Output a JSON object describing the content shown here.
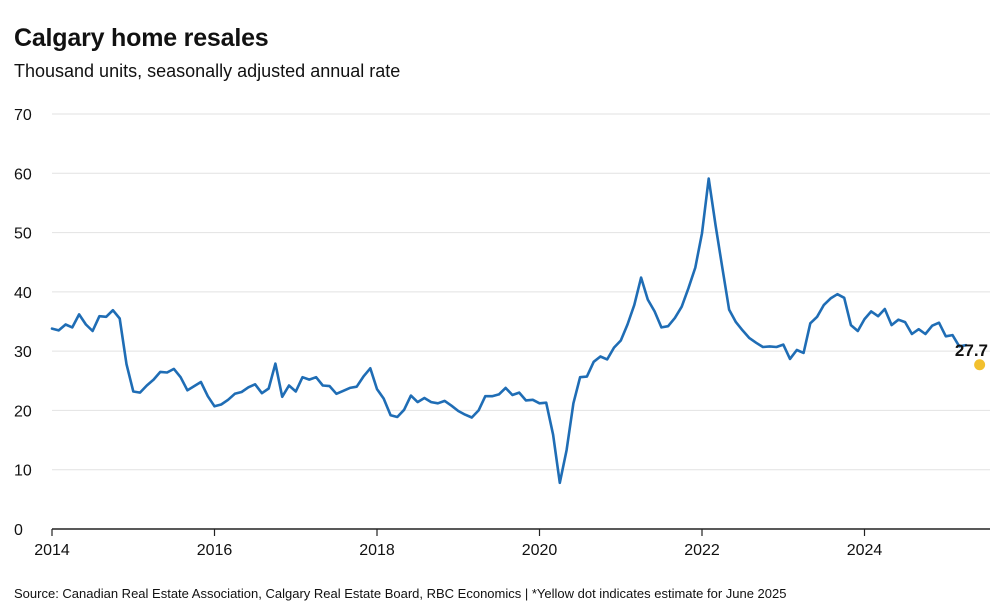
{
  "chart_data": {
    "type": "line",
    "title": "Calgary home resales",
    "subtitle": "Thousand units, seasonally adjusted annual rate",
    "source": "Source: Canadian Real Estate Association, Calgary Real Estate Board, RBC Economics | *Yellow dot indicates estimate for June 2025",
    "xlabel": "",
    "ylabel": "",
    "xlim": [
      2014,
      2025.75
    ],
    "ylim": [
      0,
      70
    ],
    "y_ticks": [
      "0",
      "10",
      "20",
      "30",
      "40",
      "50",
      "60",
      "70"
    ],
    "x_ticks": [
      "2014",
      "2016",
      "2018",
      "2020",
      "2022",
      "2024"
    ],
    "grid": true,
    "legend": "none",
    "colors": {
      "line": "#1f6db5",
      "estimate": "#f2c02e",
      "grid": "#e2e2e2",
      "axis": "#222222"
    },
    "series": [
      {
        "x": [
          2014.0,
          2014.083,
          2014.167,
          2014.25,
          2014.333,
          2014.417,
          2014.5,
          2014.583,
          2014.667,
          2014.75,
          2014.833,
          2014.917,
          2015.0,
          2015.083,
          2015.167,
          2015.25,
          2015.333,
          2015.417,
          2015.5,
          2015.583,
          2015.667,
          2015.75,
          2015.833,
          2015.917,
          2016.0,
          2016.083,
          2016.167,
          2016.25,
          2016.333,
          2016.417,
          2016.5,
          2016.583,
          2016.667,
          2016.75,
          2016.833,
          2016.917,
          2017.0,
          2017.083,
          2017.167,
          2017.25,
          2017.333,
          2017.417,
          2017.5,
          2017.583,
          2017.667,
          2017.75,
          2017.833,
          2017.917,
          2018.0,
          2018.083,
          2018.167,
          2018.25,
          2018.333,
          2018.417,
          2018.5,
          2018.583,
          2018.667,
          2018.75,
          2018.833,
          2018.917,
          2019.0,
          2019.083,
          2019.167,
          2019.25,
          2019.333,
          2019.417,
          2019.5,
          2019.583,
          2019.667,
          2019.75,
          2019.833,
          2019.917,
          2020.0,
          2020.083,
          2020.167,
          2020.25,
          2020.333,
          2020.417,
          2020.5,
          2020.583,
          2020.667,
          2020.75,
          2020.833,
          2020.917,
          2021.0,
          2021.083,
          2021.167,
          2021.25,
          2021.333,
          2021.417,
          2021.5,
          2021.583,
          2021.667,
          2021.75,
          2021.833,
          2021.917,
          2022.0,
          2022.083,
          2022.167,
          2022.25,
          2022.333,
          2022.417,
          2022.5,
          2022.583,
          2022.667,
          2022.75,
          2022.833,
          2022.917,
          2023.0,
          2023.083,
          2023.167,
          2023.25,
          2023.333,
          2023.417,
          2023.5,
          2023.583,
          2023.667,
          2023.75,
          2023.833,
          2023.917,
          2024.0,
          2024.083,
          2024.167,
          2024.25,
          2024.333,
          2024.417,
          2024.5,
          2024.583,
          2024.667,
          2024.75,
          2024.833,
          2024.917,
          2025.0,
          2025.083,
          2025.167,
          2025.25
        ],
        "values": [
          33.8,
          33.5,
          34.5,
          34.0,
          36.2,
          34.5,
          33.4,
          35.9,
          35.8,
          36.9,
          35.5,
          27.8,
          23.2,
          23.0,
          24.2,
          25.2,
          26.5,
          26.4,
          27.0,
          25.6,
          23.4,
          24.1,
          24.8,
          22.4,
          20.7,
          21.0,
          21.8,
          22.8,
          23.1,
          23.9,
          24.4,
          22.9,
          23.7,
          27.9,
          22.3,
          24.2,
          23.2,
          25.6,
          25.2,
          25.6,
          24.2,
          24.1,
          22.8,
          23.3,
          23.8,
          24.0,
          25.7,
          27.1,
          23.6,
          22.0,
          19.2,
          18.9,
          20.1,
          22.5,
          21.4,
          22.1,
          21.4,
          21.2,
          21.6,
          20.8,
          19.9,
          19.3,
          18.8,
          20.0,
          22.4,
          22.4,
          22.7,
          23.8,
          22.6,
          23.0,
          21.7,
          21.8,
          21.2,
          21.3,
          15.9,
          7.8,
          13.3,
          21.2,
          25.6,
          25.7,
          28.2,
          29.1,
          28.6,
          30.6,
          31.8,
          34.5,
          37.8,
          42.4,
          38.7,
          36.7,
          34.0,
          34.2,
          35.6,
          37.5,
          40.6,
          44.1,
          49.9,
          59.1,
          51.2,
          44.1,
          37.0,
          34.9,
          33.5,
          32.2,
          31.4,
          30.7,
          30.8,
          30.7,
          31.1,
          28.7,
          30.2,
          29.7,
          34.7,
          35.8,
          37.8,
          38.9,
          39.6,
          39.0,
          34.4,
          33.4,
          35.4,
          36.7,
          35.9,
          37.1,
          34.4,
          35.3,
          34.9,
          32.9,
          33.7,
          32.9,
          34.3,
          34.8,
          32.5,
          32.7,
          30.8,
          31.0
        ]
      }
    ],
    "estimate": {
      "x": 2025.417,
      "value": 27.7,
      "label": "27.7"
    }
  }
}
